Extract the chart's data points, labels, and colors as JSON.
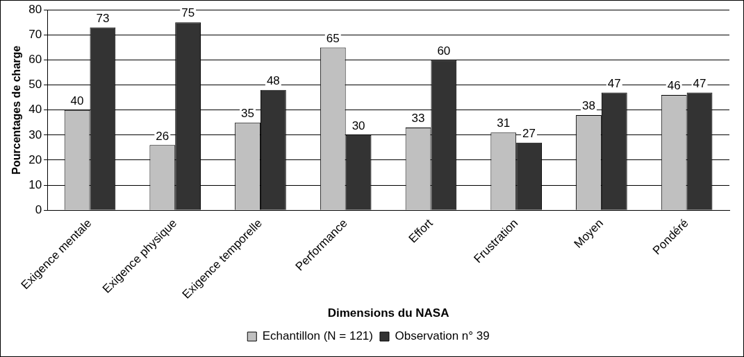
{
  "chart_data": {
    "type": "bar",
    "xlabel": "Dimensions du NASA",
    "ylabel": "Pourcentages de charge",
    "categories": [
      "Exigence mentale",
      "Exigence physique",
      "Exigence temporelle",
      "Performance",
      "Effort",
      "Frustration",
      "Moyen",
      "Pondéré"
    ],
    "series": [
      {
        "name": "Echantillon (N = 121)",
        "color": "#c0c0c0",
        "values": [
          40,
          26,
          35,
          65,
          33,
          31,
          38,
          46
        ]
      },
      {
        "name": "Observation n° 39",
        "color": "#333333",
        "values": [
          73,
          75,
          48,
          30,
          60,
          27,
          47,
          47
        ]
      }
    ],
    "ylim": [
      0,
      80
    ],
    "yticks": [
      0,
      10,
      20,
      30,
      40,
      50,
      60,
      70,
      80
    ],
    "grid": "y",
    "legend": "bottom",
    "data_labels": true
  }
}
